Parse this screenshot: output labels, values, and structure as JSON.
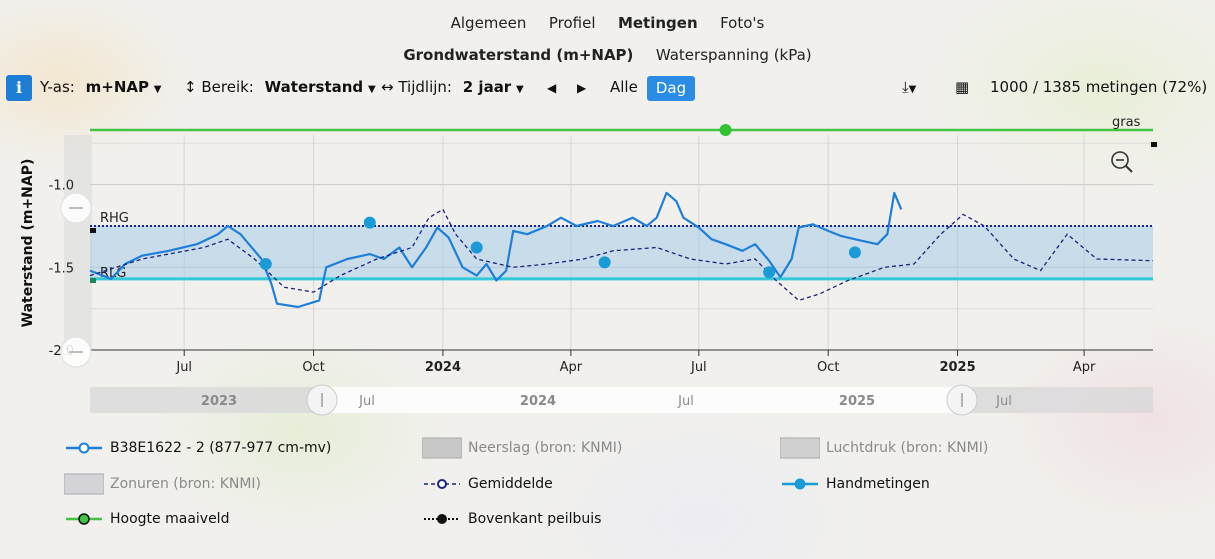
{
  "tabs": {
    "row1": [
      {
        "label": "Algemeen",
        "active": false
      },
      {
        "label": "Profiel",
        "active": false
      },
      {
        "label": "Metingen",
        "active": true
      },
      {
        "label": "Foto's",
        "active": false
      }
    ],
    "row2": [
      {
        "label": "Grondwaterstand (m+NAP)",
        "active": true
      },
      {
        "label": "Waterspanning (kPa)",
        "active": false
      }
    ]
  },
  "toolbar": {
    "info_icon": "info-icon",
    "yas_label": "Y-as:",
    "yas_value": "m+NAP",
    "range_label": "Bereik:",
    "range_value": "Waterstand",
    "timeline_label": "Tijdlijn:",
    "timeline_value": "2 jaar",
    "all_label": "Alle",
    "day_label": "Dag",
    "count_text": "1000 / 1385 metingen (72%)"
  },
  "chart_data": {
    "type": "line",
    "ylabel": "Waterstand (m+NAP)",
    "ylim": [
      -2.0,
      -0.7
    ],
    "yticks": [
      -1.0,
      -1.5,
      -2.0
    ],
    "ytick_labels": [
      "-1.0",
      "-1.5",
      "-2.0"
    ],
    "xlim": [
      "2023-04-25",
      "2025-05-20"
    ],
    "xticks": [
      {
        "date": "2023-07-01",
        "label": "Jul",
        "bold": false
      },
      {
        "date": "2023-10-01",
        "label": "Oct",
        "bold": false
      },
      {
        "date": "2024-01-01",
        "label": "2024",
        "bold": true
      },
      {
        "date": "2024-04-01",
        "label": "Apr",
        "bold": false
      },
      {
        "date": "2024-07-01",
        "label": "Jul",
        "bold": false
      },
      {
        "date": "2024-10-01",
        "label": "Oct",
        "bold": false
      },
      {
        "date": "2025-01-01",
        "label": "2025",
        "bold": true
      },
      {
        "date": "2025-04-01",
        "label": "Apr",
        "bold": false
      }
    ],
    "grid": true,
    "reference_lines": [
      {
        "label": "RHG",
        "y": -1.25,
        "color": "#1a237e"
      },
      {
        "label": "RLG",
        "y": -1.57,
        "color": "#33c8d8"
      },
      {
        "label": "gras",
        "y": -0.67,
        "color": "#44c244"
      }
    ],
    "series": [
      {
        "name": "B38E1622 - 2 (877-977 cm-mv)",
        "color": "#1f7fd8",
        "style": "solid",
        "points": [
          [
            "2023-04-25",
            -1.52
          ],
          [
            "2023-05-10",
            -1.57
          ],
          [
            "2023-05-20",
            -1.48
          ],
          [
            "2023-06-01",
            -1.43
          ],
          [
            "2023-06-20",
            -1.4
          ],
          [
            "2023-07-10",
            -1.36
          ],
          [
            "2023-07-25",
            -1.3
          ],
          [
            "2023-08-01",
            -1.25
          ],
          [
            "2023-08-10",
            -1.3
          ],
          [
            "2023-08-25",
            -1.45
          ],
          [
            "2023-09-01",
            -1.6
          ],
          [
            "2023-09-05",
            -1.72
          ],
          [
            "2023-09-20",
            -1.74
          ],
          [
            "2023-10-05",
            -1.7
          ],
          [
            "2023-10-10",
            -1.5
          ],
          [
            "2023-10-25",
            -1.45
          ],
          [
            "2023-11-10",
            -1.42
          ],
          [
            "2023-11-20",
            -1.45
          ],
          [
            "2023-12-01",
            -1.38
          ],
          [
            "2023-12-10",
            -1.5
          ],
          [
            "2023-12-20",
            -1.38
          ],
          [
            "2023-12-28",
            -1.26
          ],
          [
            "2024-01-05",
            -1.32
          ],
          [
            "2024-01-15",
            -1.5
          ],
          [
            "2024-01-25",
            -1.55
          ],
          [
            "2024-02-01",
            -1.48
          ],
          [
            "2024-02-08",
            -1.58
          ],
          [
            "2024-02-15",
            -1.52
          ],
          [
            "2024-02-20",
            -1.28
          ],
          [
            "2024-03-01",
            -1.3
          ],
          [
            "2024-03-15",
            -1.25
          ],
          [
            "2024-03-25",
            -1.2
          ],
          [
            "2024-04-05",
            -1.25
          ],
          [
            "2024-04-20",
            -1.22
          ],
          [
            "2024-05-01",
            -1.25
          ],
          [
            "2024-05-15",
            -1.2
          ],
          [
            "2024-05-25",
            -1.25
          ],
          [
            "2024-06-01",
            -1.2
          ],
          [
            "2024-06-08",
            -1.05
          ],
          [
            "2024-06-15",
            -1.1
          ],
          [
            "2024-06-20",
            -1.2
          ],
          [
            "2024-07-01",
            -1.26
          ],
          [
            "2024-07-10",
            -1.33
          ],
          [
            "2024-07-20",
            -1.36
          ],
          [
            "2024-08-01",
            -1.4
          ],
          [
            "2024-08-10",
            -1.36
          ],
          [
            "2024-08-20",
            -1.46
          ],
          [
            "2024-08-28",
            -1.56
          ],
          [
            "2024-09-05",
            -1.45
          ],
          [
            "2024-09-10",
            -1.26
          ],
          [
            "2024-09-20",
            -1.24
          ],
          [
            "2024-10-01",
            -1.28
          ],
          [
            "2024-10-10",
            -1.31
          ],
          [
            "2024-10-25",
            -1.34
          ],
          [
            "2024-11-05",
            -1.36
          ],
          [
            "2024-11-12",
            -1.3
          ],
          [
            "2024-11-17",
            -1.05
          ],
          [
            "2024-11-22",
            -1.15
          ]
        ]
      },
      {
        "name": "Gemiddelde",
        "color": "#1a237e",
        "style": "dashed",
        "points": [
          [
            "2023-04-25",
            -1.55
          ],
          [
            "2023-06-01",
            -1.45
          ],
          [
            "2023-07-15",
            -1.38
          ],
          [
            "2023-08-01",
            -1.33
          ],
          [
            "2023-08-20",
            -1.45
          ],
          [
            "2023-09-10",
            -1.62
          ],
          [
            "2023-10-01",
            -1.65
          ],
          [
            "2023-10-20",
            -1.55
          ],
          [
            "2023-11-15",
            -1.45
          ],
          [
            "2023-12-10",
            -1.38
          ],
          [
            "2023-12-22",
            -1.2
          ],
          [
            "2024-01-01",
            -1.15
          ],
          [
            "2024-01-10",
            -1.3
          ],
          [
            "2024-01-25",
            -1.45
          ],
          [
            "2024-02-20",
            -1.5
          ],
          [
            "2024-03-15",
            -1.48
          ],
          [
            "2024-04-10",
            -1.45
          ],
          [
            "2024-05-01",
            -1.4
          ],
          [
            "2024-06-01",
            -1.38
          ],
          [
            "2024-06-25",
            -1.45
          ],
          [
            "2024-07-20",
            -1.48
          ],
          [
            "2024-08-10",
            -1.45
          ],
          [
            "2024-08-25",
            -1.58
          ],
          [
            "2024-09-10",
            -1.7
          ],
          [
            "2024-09-25",
            -1.66
          ],
          [
            "2024-10-15",
            -1.58
          ],
          [
            "2024-11-10",
            -1.5
          ],
          [
            "2024-12-01",
            -1.48
          ],
          [
            "2024-12-20",
            -1.3
          ],
          [
            "2025-01-05",
            -1.18
          ],
          [
            "2025-01-20",
            -1.25
          ],
          [
            "2025-02-10",
            -1.45
          ],
          [
            "2025-03-01",
            -1.52
          ],
          [
            "2025-03-20",
            -1.3
          ],
          [
            "2025-04-10",
            -1.45
          ],
          [
            "2025-05-20",
            -1.46
          ]
        ]
      },
      {
        "name": "Handmetingen",
        "color": "#1a9ad6",
        "style": "markers",
        "points": [
          [
            "2023-08-28",
            -1.48
          ],
          [
            "2023-11-10",
            -1.23
          ],
          [
            "2024-01-25",
            -1.38
          ],
          [
            "2024-04-25",
            -1.47
          ],
          [
            "2024-08-20",
            -1.53
          ],
          [
            "2024-10-20",
            -1.41
          ]
        ]
      },
      {
        "name": "Hoogte maaiveld",
        "color": "#44c244",
        "style": "solid",
        "points": [
          [
            "2023-04-25",
            -0.67
          ],
          [
            "2025-05-20",
            -0.67
          ]
        ],
        "marker_point": [
          "2024-07-20",
          -0.67
        ]
      }
    ]
  },
  "navigator": {
    "labels": [
      {
        "text": "2023",
        "bold": true
      },
      {
        "text": "Jul",
        "bold": false
      },
      {
        "text": "2024",
        "bold": true
      },
      {
        "text": "Jul",
        "bold": false
      },
      {
        "text": "2025",
        "bold": true
      },
      {
        "text": "Jul",
        "bold": false
      }
    ]
  },
  "legend": [
    {
      "label": "B38E1622 - 2 (877-977 cm-mv)",
      "swatch": "line-circle",
      "color": "#1f7fd8",
      "faded": false
    },
    {
      "label": "Neerslag (bron: KNMI)",
      "swatch": "box",
      "color": "#c8c8c8",
      "faded": true
    },
    {
      "label": "Luchtdruk (bron: KNMI)",
      "swatch": "box",
      "color": "#d0d0d0",
      "faded": true
    },
    {
      "label": "Zonuren (bron: KNMI)",
      "swatch": "box",
      "color": "#d4d4d8",
      "faded": true
    },
    {
      "label": "Gemiddelde",
      "swatch": "dash-circle",
      "color": "#1a237e",
      "faded": false
    },
    {
      "label": "Handmetingen",
      "swatch": "line-dot",
      "color": "#1a9ad6",
      "faded": false
    },
    {
      "label": "Hoogte maaiveld",
      "swatch": "line-green",
      "color": "#44c244",
      "faded": false
    },
    {
      "label": "Bovenkant peilbuis",
      "swatch": "dot-black",
      "color": "#111111",
      "faded": false
    }
  ]
}
